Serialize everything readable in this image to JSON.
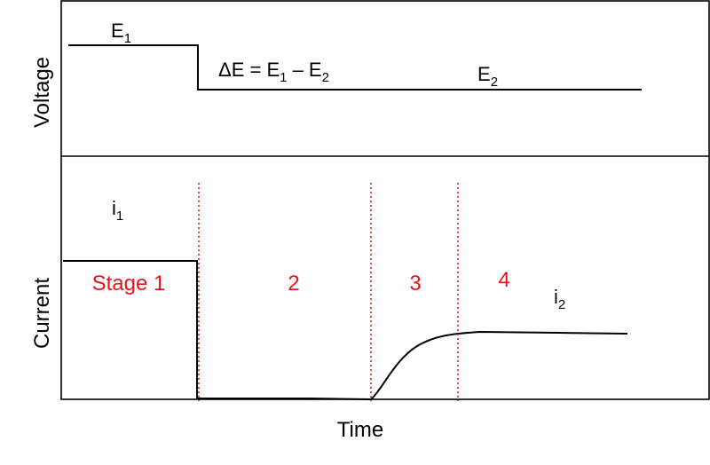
{
  "axes": {
    "top_ylabel": "Voltage",
    "bottom_ylabel": "Current",
    "xlabel": "Time"
  },
  "voltage_labels": {
    "e1_main": "E",
    "e1_sub": "1",
    "delta_prefix": "ΔE = E",
    "delta_sub1": "1",
    "delta_mid": " – E",
    "delta_sub2": "2",
    "e2_main": "E",
    "e2_sub": "2"
  },
  "current_labels": {
    "i1_main": "i",
    "i1_sub": "1",
    "i2_main": "i",
    "i2_sub": "2"
  },
  "stages": [
    "Stage 1",
    "2",
    "3",
    "4"
  ],
  "colors": {
    "line": "#000000",
    "stage": "#e8141b",
    "divider": "#d42020"
  }
}
